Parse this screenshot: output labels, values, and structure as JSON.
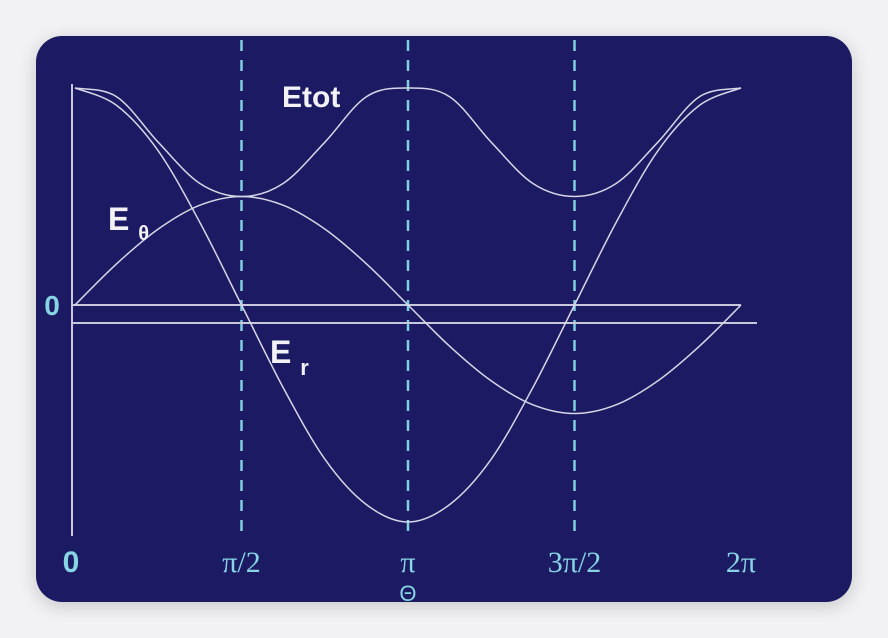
{
  "chart_data": {
    "type": "line",
    "xlabel": "Θ",
    "ylabel": "",
    "xlim": [
      0,
      6.2832
    ],
    "ylim": [
      -1,
      1
    ],
    "x_ticks": [
      {
        "value": 0,
        "label": "0"
      },
      {
        "value": 1.5708,
        "label": "π/2"
      },
      {
        "value": 3.1416,
        "label": "π"
      },
      {
        "value": 4.7124,
        "label": "3π/2"
      },
      {
        "value": 6.2832,
        "label": "2π"
      }
    ],
    "y_ticks": [
      {
        "value": 0,
        "label": "0"
      }
    ],
    "vertical_guides": [
      1.5708,
      3.1416,
      4.7124
    ],
    "grid": false,
    "series": [
      {
        "name": "Etot",
        "x": [
          0,
          0.3927,
          0.7854,
          1.1781,
          1.5708,
          1.9635,
          2.3562,
          2.7489,
          3.1416,
          3.5343,
          3.927,
          4.3197,
          4.7124,
          5.1051,
          5.4978,
          5.8905,
          6.2832
        ],
        "y": [
          1.0,
          0.96,
          0.75,
          0.56,
          0.5,
          0.56,
          0.75,
          0.96,
          1.0,
          0.96,
          0.75,
          0.56,
          0.5,
          0.56,
          0.75,
          0.96,
          1.0
        ]
      },
      {
        "name": "Eθ",
        "x": [
          0,
          0.3927,
          0.7854,
          1.1781,
          1.5708,
          1.9635,
          2.3562,
          2.7489,
          3.1416,
          3.5343,
          3.927,
          4.3197,
          4.7124,
          5.1051,
          5.4978,
          5.8905,
          6.2832
        ],
        "y": [
          0.0,
          0.19,
          0.35,
          0.46,
          0.5,
          0.46,
          0.35,
          0.19,
          0.0,
          -0.19,
          -0.35,
          -0.46,
          -0.5,
          -0.46,
          -0.35,
          -0.19,
          0.0
        ]
      },
      {
        "name": "Er",
        "x": [
          0,
          0.3927,
          0.7854,
          1.1781,
          1.5708,
          1.9635,
          2.3562,
          2.7489,
          3.1416,
          3.5343,
          3.927,
          4.3197,
          4.7124,
          5.1051,
          5.4978,
          5.8905,
          6.2832
        ],
        "y": [
          1.0,
          0.92,
          0.71,
          0.38,
          0.0,
          -0.38,
          -0.71,
          -0.92,
          -1.0,
          -0.92,
          -0.71,
          -0.38,
          0.0,
          0.38,
          0.71,
          0.92,
          1.0
        ]
      }
    ],
    "annotations": [
      {
        "text": "Etot",
        "series": "Etot"
      },
      {
        "text": "E",
        "subscript": "θ",
        "series": "Eθ"
      },
      {
        "text": "E",
        "subscript": "r",
        "series": "Er"
      }
    ],
    "colors": {
      "background": "#1c1a62",
      "curves": "#d6d6e6",
      "guides": "#7fd0e0",
      "tick_labels": "#86d4e4",
      "annotations": "#f2f2f6"
    }
  }
}
